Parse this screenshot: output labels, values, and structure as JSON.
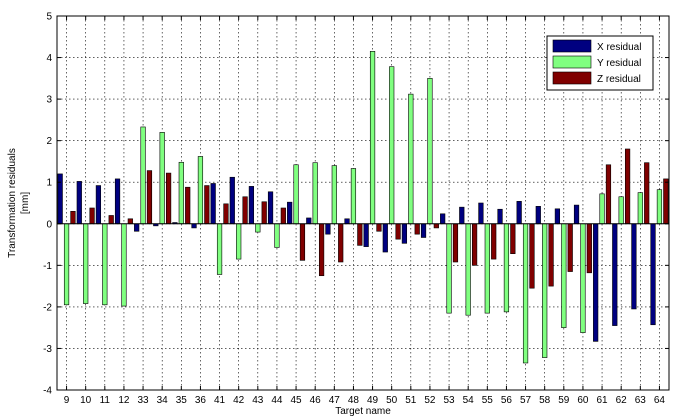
{
  "chart_data": {
    "type": "bar",
    "xlabel": "Target name",
    "ylabel_lines": [
      "Transformation residuals",
      "[mm]"
    ],
    "ylim": [
      -4,
      5
    ],
    "yticks": [
      -4,
      -3,
      -2,
      -1,
      0,
      1,
      2,
      3,
      4,
      5
    ],
    "grid": true,
    "legend_position": "top-right",
    "categories": [
      "9",
      "10",
      "11",
      "12",
      "33",
      "34",
      "35",
      "36",
      "41",
      "42",
      "43",
      "44",
      "45",
      "46",
      "47",
      "48",
      "49",
      "50",
      "51",
      "52",
      "53",
      "54",
      "55",
      "56",
      "57",
      "58",
      "59",
      "60",
      "61",
      "62",
      "63",
      "64"
    ],
    "series": [
      {
        "name": "X residual",
        "color": "#000080",
        "values": [
          1.2,
          1.02,
          0.92,
          1.08,
          -0.18,
          -0.05,
          0.03,
          -0.1,
          0.97,
          1.12,
          0.9,
          0.77,
          0.52,
          0.14,
          -0.25,
          0.12,
          -0.55,
          -0.68,
          -0.47,
          -0.33,
          0.24,
          0.4,
          0.5,
          0.35,
          0.54,
          0.42,
          0.36,
          0.45,
          -2.83,
          -2.45,
          -2.05,
          -2.43
        ]
      },
      {
        "name": "Y residual",
        "color": "#80ff80",
        "values": [
          -1.95,
          -1.92,
          -1.95,
          -1.98,
          2.33,
          2.2,
          1.48,
          1.62,
          -1.22,
          -0.85,
          -0.2,
          -0.57,
          1.42,
          1.47,
          1.4,
          1.33,
          4.15,
          3.78,
          3.12,
          3.5,
          -2.15,
          -2.2,
          -2.15,
          -2.12,
          -3.35,
          -3.22,
          -2.5,
          -2.62,
          0.72,
          0.65,
          0.75,
          0.82
        ]
      },
      {
        "name": "Z residual",
        "color": "#800000",
        "values": [
          0.3,
          0.38,
          0.2,
          0.12,
          1.28,
          1.22,
          0.88,
          0.92,
          0.48,
          0.65,
          0.53,
          0.38,
          -0.88,
          -1.25,
          -0.92,
          -0.52,
          -0.18,
          -0.37,
          -0.25,
          -0.1,
          -0.92,
          -1.0,
          -0.85,
          -0.72,
          -1.55,
          -1.5,
          -1.15,
          -1.18,
          1.42,
          1.8,
          1.47,
          1.08
        ]
      }
    ]
  }
}
